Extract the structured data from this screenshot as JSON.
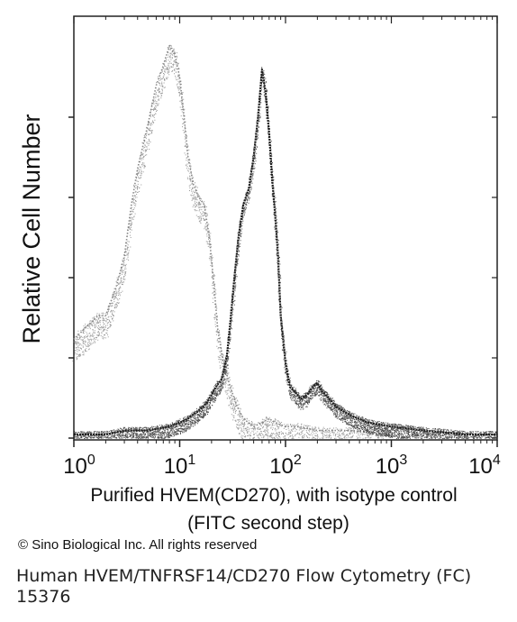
{
  "chart_data": {
    "type": "line",
    "xlabel_line1": "Purified HVEM(CD270), with isotype control",
    "xlabel_line2": "(FITC second step)",
    "ylabel": "Relative Cell Number",
    "x_scale": "log",
    "xlim": [
      1,
      10000
    ],
    "x_ticks": [
      {
        "value": 1,
        "base": "10",
        "exp": "0"
      },
      {
        "value": 10,
        "base": "10",
        "exp": "1"
      },
      {
        "value": 100,
        "base": "10",
        "exp": "2"
      },
      {
        "value": 1000,
        "base": "10",
        "exp": "3"
      },
      {
        "value": 10000,
        "base": "10",
        "exp": "4"
      }
    ],
    "ylim": [
      0,
      100
    ],
    "y_tick_count": 5,
    "grid": false,
    "series": [
      {
        "style": "light-stipple",
        "x": [
          1.0,
          1.3,
          1.7,
          2.0,
          2.5,
          3.0,
          3.5,
          4.0,
          5.0,
          6.0,
          7.0,
          8.0,
          9.0,
          10.0,
          11.0,
          12.0,
          13.5,
          15.0,
          17.0,
          19.0,
          21.0,
          23.0,
          26.0,
          30.0,
          35.0,
          40.0,
          50.0,
          60.0,
          70.0,
          80.0,
          100.0,
          130.0,
          200.0,
          400.0,
          1000.0
        ],
        "y": [
          24,
          27,
          30,
          30,
          37,
          45,
          58,
          67,
          78,
          88,
          93,
          98,
          96,
          90,
          80,
          70,
          63,
          60,
          58,
          50,
          38,
          26,
          18,
          12,
          7,
          4,
          2,
          3,
          4,
          3,
          2,
          2,
          1,
          1,
          0
        ]
      },
      {
        "style": "dark-stipple",
        "x": [
          1.0,
          2.0,
          3.0,
          5.0,
          8.0,
          10.0,
          12.0,
          15.0,
          18.0,
          20.0,
          22.0,
          25.0,
          28.0,
          30.0,
          33.0,
          36.0,
          40.0,
          45.0,
          50.0,
          55.0,
          60.0,
          65.0,
          70.0,
          75.0,
          80.0,
          85.0,
          90.0,
          100.0,
          110.0,
          120.0,
          140.0,
          160.0,
          180.0,
          200.0,
          220.0,
          260.0,
          300.0,
          400.0,
          600.0,
          1000.0,
          2000.0,
          5000.0,
          10000.0
        ],
        "y": [
          0,
          0,
          1,
          1,
          2,
          3,
          4,
          6,
          8,
          10,
          12,
          14,
          20,
          28,
          40,
          50,
          58,
          62,
          70,
          80,
          92,
          86,
          76,
          64,
          55,
          45,
          30,
          18,
          12,
          11,
          9,
          10,
          12,
          13,
          11,
          9,
          7,
          5,
          3,
          2,
          1,
          0,
          0
        ]
      }
    ]
  },
  "copyright": "© Sino Biological Inc. All rights reserved",
  "caption": {
    "line1": "Human HVEM/TNFRSF14/CD270 Flow Cytometry (FC)",
    "line2": "15376"
  }
}
